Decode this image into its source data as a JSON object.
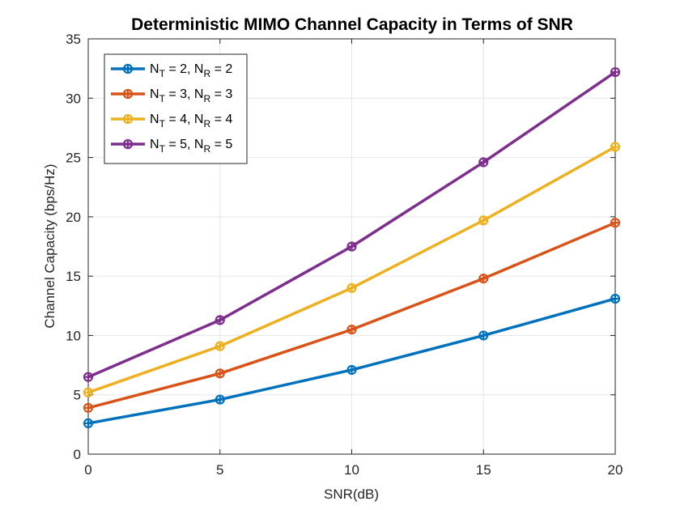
{
  "chart_data": {
    "type": "line",
    "title": "Deterministic MIMO Channel Capacity in Terms of SNR",
    "xlabel": "SNR(dB)",
    "ylabel": "Channel Capacity (bps/Hz)",
    "x": [
      0,
      5,
      10,
      15,
      20
    ],
    "xlim": [
      0,
      20
    ],
    "ylim": [
      0,
      35
    ],
    "xticks": [
      "0",
      "5",
      "10",
      "15",
      "20"
    ],
    "yticks": [
      "0",
      "5",
      "10",
      "15",
      "20",
      "25",
      "30",
      "35"
    ],
    "grid": true,
    "legend_position": "top-left",
    "series": [
      {
        "legend": {
          "n1": "N",
          "s1": "T",
          "mid": " = 2, N",
          "s2": "R",
          "end": " = 2"
        },
        "color": "#0072BD",
        "values": [
          2.6,
          4.6,
          7.1,
          10.0,
          13.1
        ]
      },
      {
        "legend": {
          "n1": "N",
          "s1": "T",
          "mid": " = 3, N",
          "s2": "R",
          "end": " = 3"
        },
        "color": "#D95319",
        "values": [
          3.9,
          6.8,
          10.5,
          14.8,
          19.5
        ]
      },
      {
        "legend": {
          "n1": "N",
          "s1": "T",
          "mid": " = 4, N",
          "s2": "R",
          "end": " = 4"
        },
        "color": "#EDB120",
        "values": [
          5.2,
          9.1,
          14.0,
          19.7,
          25.9
        ]
      },
      {
        "legend": {
          "n1": "N",
          "s1": "T",
          "mid": " = 5, N",
          "s2": "R",
          "end": " = 5"
        },
        "color": "#7E2F8E",
        "values": [
          6.5,
          11.3,
          17.5,
          24.6,
          32.2
        ]
      }
    ]
  }
}
